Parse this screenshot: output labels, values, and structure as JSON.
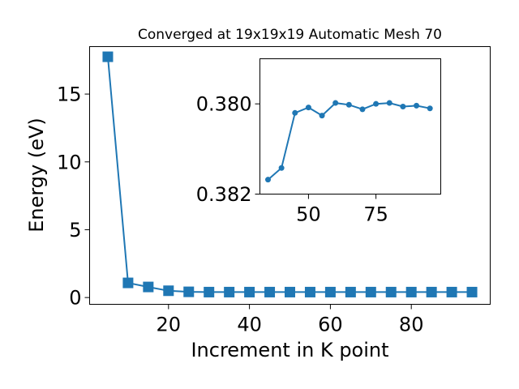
{
  "chart_data": [
    {
      "type": "line",
      "title": "Converged at 19x19x19 Automatic Mesh 70",
      "xlabel": "Increment in K point",
      "ylabel": "Energy (eV)",
      "xlim": [
        0.5,
        99.5
      ],
      "ylim": [
        -0.5,
        18.5
      ],
      "xticks": [
        "20",
        "40",
        "60",
        "80"
      ],
      "yticks": [
        "0",
        "5",
        "10",
        "15"
      ],
      "grid": false,
      "color": "#1f77b4",
      "marker": "square",
      "x": [
        5,
        10,
        15,
        20,
        25,
        30,
        35,
        40,
        45,
        50,
        55,
        60,
        65,
        70,
        75,
        80,
        85,
        90,
        95
      ],
      "y": [
        17.75,
        1.08,
        0.78,
        0.5,
        0.42,
        0.4,
        0.4,
        0.4,
        0.4,
        0.4,
        0.4,
        0.4,
        0.4,
        0.4,
        0.4,
        0.4,
        0.4,
        0.4,
        0.4
      ]
    },
    {
      "type": "line",
      "title": "",
      "xlabel": "",
      "ylabel": "",
      "xlim": [
        32,
        99
      ],
      "ylim": [
        0.382,
        0.379
      ],
      "inverted_y": true,
      "xticks": [
        "50",
        "75"
      ],
      "yticks": [
        "0.380",
        "0.382"
      ],
      "grid": false,
      "color": "#1f77b4",
      "marker": "circle",
      "x": [
        35,
        40,
        45,
        50,
        55,
        60,
        65,
        70,
        75,
        80,
        85,
        90,
        95
      ],
      "y": [
        0.38168,
        0.38142,
        0.3802,
        0.38008,
        0.38026,
        0.37998,
        0.38002,
        0.38012,
        0.38,
        0.37998,
        0.38006,
        0.38004,
        0.3801
      ]
    }
  ]
}
